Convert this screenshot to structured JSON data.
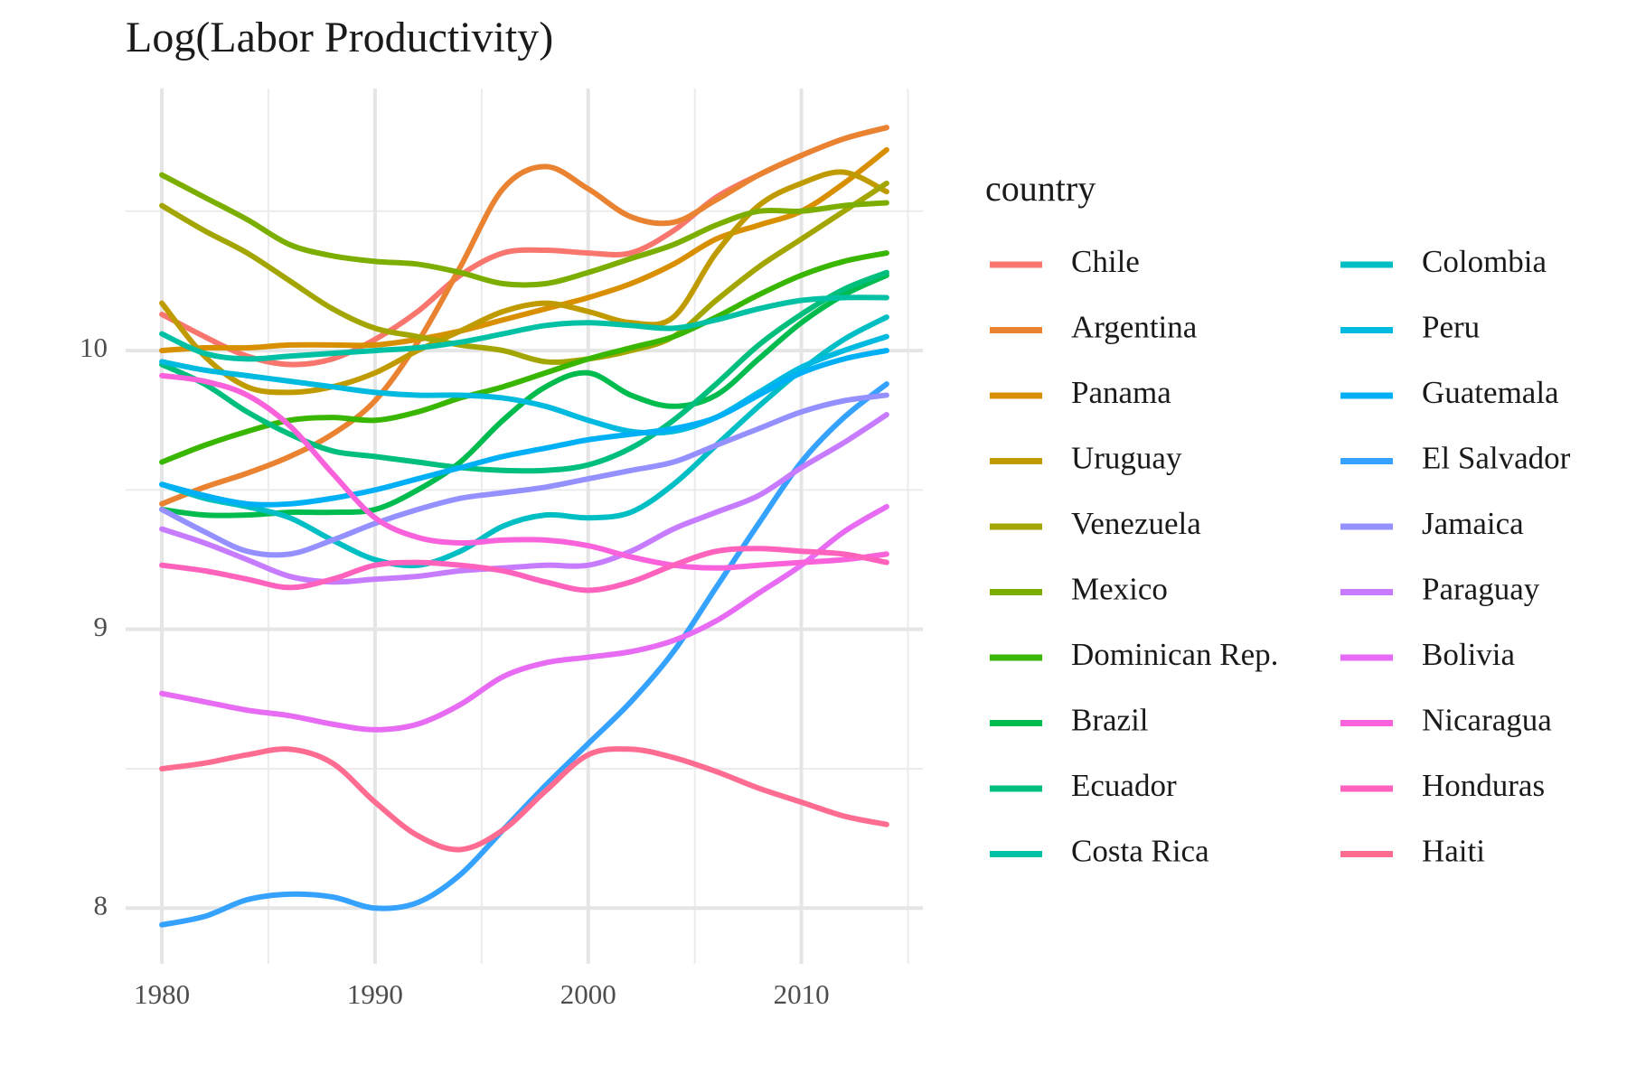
{
  "chart_data": {
    "type": "line",
    "title": "Log(Labor Productivity)",
    "legend_title": "country",
    "legend_position": "right",
    "legend_columns": 2,
    "grid": true,
    "x": [
      1980,
      1982,
      1984,
      1986,
      1988,
      1990,
      1992,
      1994,
      1996,
      1998,
      2000,
      2002,
      2004,
      2006,
      2008,
      2010,
      2012,
      2014
    ],
    "xlim": [
      1978.3,
      2015.7
    ],
    "xticks": [
      1980,
      1990,
      2000,
      2010
    ],
    "x_minor_ticks": [
      1985,
      1995,
      2005,
      2015
    ],
    "ylim": [
      7.8,
      10.94
    ],
    "yticks": [
      8,
      9,
      10
    ],
    "y_minor_ticks": [
      8.5,
      9.5,
      10.5
    ],
    "series": [
      {
        "name": "Chile",
        "color": "#F8766D",
        "values": [
          10.13,
          10.05,
          9.98,
          9.95,
          9.97,
          10.04,
          10.14,
          10.27,
          10.35,
          10.36,
          10.35,
          10.35,
          10.43,
          10.55,
          10.63,
          10.7,
          10.76,
          10.8
        ]
      },
      {
        "name": "Argentina",
        "color": "#EA8331",
        "values": [
          9.45,
          9.51,
          9.56,
          9.62,
          9.7,
          9.82,
          10.03,
          10.3,
          10.58,
          10.66,
          10.58,
          10.48,
          10.46,
          10.54,
          10.63,
          10.7,
          10.76,
          10.8
        ]
      },
      {
        "name": "Panama",
        "color": "#D89000",
        "values": [
          10.0,
          10.01,
          10.01,
          10.02,
          10.02,
          10.02,
          10.04,
          10.07,
          10.11,
          10.15,
          10.19,
          10.24,
          10.31,
          10.4,
          10.45,
          10.5,
          10.6,
          10.72
        ]
      },
      {
        "name": "Uruguay",
        "color": "#C09B00",
        "values": [
          10.17,
          9.98,
          9.87,
          9.85,
          9.87,
          9.92,
          10.0,
          10.07,
          10.14,
          10.17,
          10.14,
          10.1,
          10.12,
          10.35,
          10.52,
          10.6,
          10.64,
          10.57
        ]
      },
      {
        "name": "Venezuela",
        "color": "#A3A500",
        "values": [
          10.52,
          10.43,
          10.35,
          10.25,
          10.15,
          10.08,
          10.05,
          10.02,
          10.0,
          9.96,
          9.97,
          10.0,
          10.05,
          10.18,
          10.3,
          10.4,
          10.5,
          10.6
        ]
      },
      {
        "name": "Mexico",
        "color": "#7CAE00",
        "values": [
          10.63,
          10.55,
          10.47,
          10.38,
          10.34,
          10.32,
          10.31,
          10.28,
          10.24,
          10.24,
          10.28,
          10.33,
          10.38,
          10.45,
          10.5,
          10.5,
          10.52,
          10.53
        ]
      },
      {
        "name": "Dominican Rep.",
        "color": "#39B600",
        "values": [
          9.6,
          9.66,
          9.71,
          9.75,
          9.76,
          9.75,
          9.78,
          9.83,
          9.87,
          9.92,
          9.97,
          10.01,
          10.05,
          10.12,
          10.2,
          10.27,
          10.32,
          10.35
        ]
      },
      {
        "name": "Brazil",
        "color": "#00BB4E",
        "values": [
          9.43,
          9.41,
          9.41,
          9.42,
          9.42,
          9.43,
          9.5,
          9.6,
          9.75,
          9.87,
          9.92,
          9.84,
          9.8,
          9.84,
          9.97,
          10.1,
          10.2,
          10.27
        ]
      },
      {
        "name": "Ecuador",
        "color": "#00BF7D",
        "values": [
          9.95,
          9.88,
          9.78,
          9.7,
          9.64,
          9.62,
          9.6,
          9.58,
          9.57,
          9.57,
          9.59,
          9.65,
          9.75,
          9.88,
          10.02,
          10.13,
          10.22,
          10.28
        ]
      },
      {
        "name": "Costa Rica",
        "color": "#00C1A3",
        "values": [
          10.06,
          9.99,
          9.97,
          9.98,
          9.99,
          10.0,
          10.01,
          10.03,
          10.06,
          10.09,
          10.1,
          10.09,
          10.08,
          10.11,
          10.15,
          10.18,
          10.19,
          10.19
        ]
      },
      {
        "name": "Colombia",
        "color": "#00BFC4",
        "values": [
          9.52,
          9.47,
          9.44,
          9.4,
          9.32,
          9.25,
          9.23,
          9.28,
          9.37,
          9.41,
          9.4,
          9.42,
          9.52,
          9.66,
          9.8,
          9.93,
          10.04,
          10.12
        ]
      },
      {
        "name": "Peru",
        "color": "#00BAE0",
        "values": [
          9.96,
          9.93,
          9.91,
          9.89,
          9.87,
          9.85,
          9.84,
          9.84,
          9.83,
          9.8,
          9.75,
          9.71,
          9.71,
          9.76,
          9.85,
          9.94,
          10.0,
          10.05
        ]
      },
      {
        "name": "Guatemala",
        "color": "#00B0F6",
        "values": [
          9.52,
          9.48,
          9.45,
          9.45,
          9.47,
          9.5,
          9.54,
          9.58,
          9.62,
          9.65,
          9.68,
          9.7,
          9.72,
          9.76,
          9.84,
          9.92,
          9.97,
          10.0
        ]
      },
      {
        "name": "El Salvador",
        "color": "#35A2FF",
        "values": [
          7.94,
          7.97,
          8.03,
          8.05,
          8.04,
          8.0,
          8.02,
          8.12,
          8.28,
          8.44,
          8.59,
          8.74,
          8.92,
          9.15,
          9.38,
          9.6,
          9.76,
          9.88
        ]
      },
      {
        "name": "Jamaica",
        "color": "#9590FF",
        "values": [
          9.43,
          9.35,
          9.28,
          9.27,
          9.32,
          9.38,
          9.43,
          9.47,
          9.49,
          9.51,
          9.54,
          9.57,
          9.6,
          9.66,
          9.72,
          9.78,
          9.82,
          9.84
        ]
      },
      {
        "name": "Paraguay",
        "color": "#C77CFF",
        "values": [
          9.36,
          9.31,
          9.25,
          9.19,
          9.17,
          9.18,
          9.19,
          9.21,
          9.22,
          9.23,
          9.23,
          9.28,
          9.36,
          9.42,
          9.48,
          9.58,
          9.67,
          9.77
        ]
      },
      {
        "name": "Bolivia",
        "color": "#E76BF3",
        "values": [
          8.77,
          8.74,
          8.71,
          8.69,
          8.66,
          8.64,
          8.66,
          8.73,
          8.83,
          8.88,
          8.9,
          8.92,
          8.96,
          9.03,
          9.13,
          9.23,
          9.35,
          9.44
        ]
      },
      {
        "name": "Nicaragua",
        "color": "#FA62DB",
        "values": [
          9.91,
          9.89,
          9.84,
          9.73,
          9.56,
          9.4,
          9.33,
          9.31,
          9.32,
          9.32,
          9.3,
          9.26,
          9.23,
          9.22,
          9.23,
          9.24,
          9.25,
          9.27
        ]
      },
      {
        "name": "Honduras",
        "color": "#FF62BC",
        "values": [
          9.23,
          9.21,
          9.18,
          9.15,
          9.18,
          9.23,
          9.24,
          9.23,
          9.21,
          9.17,
          9.14,
          9.17,
          9.23,
          9.28,
          9.29,
          9.28,
          9.27,
          9.24
        ]
      },
      {
        "name": "Haiti",
        "color": "#FF6C91",
        "values": [
          8.5,
          8.52,
          8.55,
          8.57,
          8.52,
          8.38,
          8.26,
          8.21,
          8.28,
          8.42,
          8.55,
          8.57,
          8.54,
          8.49,
          8.43,
          8.38,
          8.33,
          8.3
        ]
      }
    ]
  }
}
